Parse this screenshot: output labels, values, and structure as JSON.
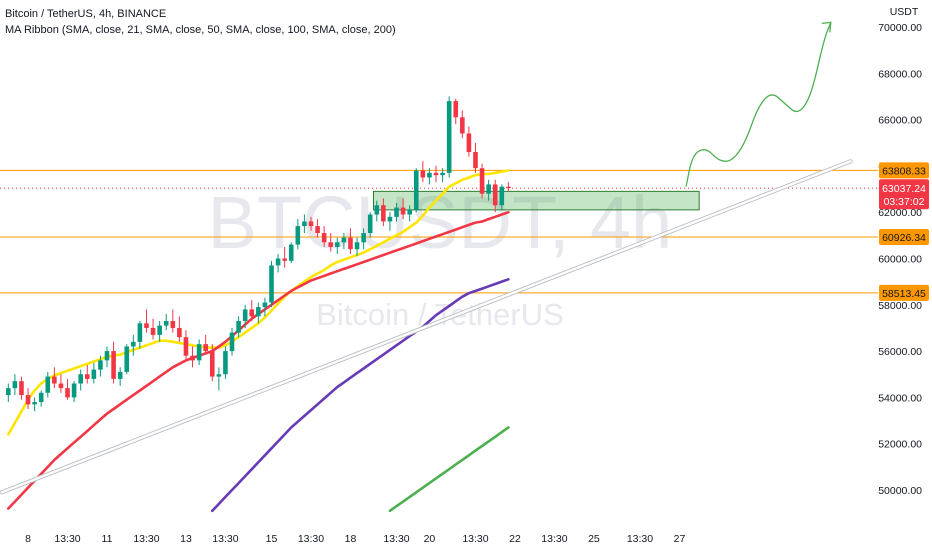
{
  "header": {
    "line1": "Bitcoin / TetherUS, 4h, BINANCE",
    "line2": "MA Ribbon (SMA, close, 21, SMA, close, 50, SMA, close, 100, SMA, close, 200)"
  },
  "watermark": {
    "symbol": "BTCUSDT, 4h",
    "name": "Bitcoin / TetherUS"
  },
  "chart_data": {
    "type": "candlestick",
    "title": "Bitcoin / TetherUS, 4h, BINANCE",
    "y_axis_unit": "USDT",
    "ylim": [
      49000,
      71000
    ],
    "y_ticks": [
      50000,
      52000,
      54000,
      56000,
      58000,
      60000,
      62000,
      64000,
      66000,
      68000,
      70000
    ],
    "y_tick_labels": [
      "50000.00",
      "52000.00",
      "54000.00",
      "56000.00",
      "58000.00",
      "60000.00",
      "62000.00",
      "64000.00",
      "66000.00",
      "68000.00",
      "70000.00"
    ],
    "x_tick_labels": [
      {
        "label": "8",
        "bar": 3
      },
      {
        "label": "13:30",
        "bar": 9
      },
      {
        "label": "11",
        "bar": 15
      },
      {
        "label": "13:30",
        "bar": 21
      },
      {
        "label": "13",
        "bar": 27
      },
      {
        "label": "13:30",
        "bar": 33
      },
      {
        "label": "15",
        "bar": 40
      },
      {
        "label": "13:30",
        "bar": 46
      },
      {
        "label": "18",
        "bar": 52
      },
      {
        "label": "13:30",
        "bar": 59
      },
      {
        "label": "20",
        "bar": 64
      },
      {
        "label": "13:30",
        "bar": 71
      },
      {
        "label": "22",
        "bar": 77
      },
      {
        "label": "13:30",
        "bar": 83
      },
      {
        "label": "25",
        "bar": 89
      },
      {
        "label": "13:30",
        "bar": 96
      },
      {
        "label": "27",
        "bar": 102
      }
    ],
    "candles": [
      [
        54100,
        54600,
        53800,
        54400
      ],
      [
        54400,
        55000,
        54100,
        54700
      ],
      [
        54700,
        54900,
        53900,
        54100
      ],
      [
        54100,
        54400,
        53500,
        53700
      ],
      [
        53700,
        54000,
        53400,
        53800
      ],
      [
        53800,
        54300,
        53600,
        54200
      ],
      [
        54200,
        55100,
        54000,
        54900
      ],
      [
        54900,
        55300,
        54400,
        54600
      ],
      [
        54600,
        55000,
        54200,
        54400
      ],
      [
        54400,
        54800,
        53900,
        54000
      ],
      [
        54000,
        54700,
        53800,
        54600
      ],
      [
        54600,
        55200,
        54300,
        55000
      ],
      [
        55000,
        55400,
        54600,
        54800
      ],
      [
        54800,
        55500,
        54600,
        55200
      ],
      [
        55200,
        55800,
        54900,
        55600
      ],
      [
        55600,
        56200,
        55300,
        56000
      ],
      [
        56000,
        56400,
        54600,
        54800
      ],
      [
        54800,
        55300,
        54500,
        55100
      ],
      [
        55100,
        56300,
        55000,
        56200
      ],
      [
        56200,
        56700,
        55800,
        56400
      ],
      [
        56400,
        57300,
        56100,
        57200
      ],
      [
        57200,
        57800,
        56800,
        57000
      ],
      [
        57000,
        57400,
        56500,
        56700
      ],
      [
        56700,
        57300,
        56400,
        57100
      ],
      [
        57100,
        57600,
        56900,
        57300
      ],
      [
        57300,
        57800,
        56800,
        57000
      ],
      [
        57000,
        57500,
        56400,
        56600
      ],
      [
        56600,
        56900,
        55600,
        55800
      ],
      [
        55800,
        56200,
        55300,
        55600
      ],
      [
        55600,
        56500,
        55400,
        56300
      ],
      [
        56300,
        56700,
        55900,
        56000
      ],
      [
        56000,
        56300,
        54700,
        54900
      ],
      [
        54900,
        55300,
        54300,
        55000
      ],
      [
        55000,
        56200,
        54800,
        56000
      ],
      [
        56000,
        57000,
        55800,
        56800
      ],
      [
        56800,
        57500,
        56600,
        57300
      ],
      [
        57300,
        58000,
        57000,
        57800
      ],
      [
        57800,
        58200,
        57300,
        57500
      ],
      [
        57500,
        58100,
        57200,
        57900
      ],
      [
        57900,
        58300,
        57500,
        58100
      ],
      [
        58100,
        59900,
        57900,
        59700
      ],
      [
        59700,
        60200,
        59400,
        60000
      ],
      [
        60000,
        60500,
        59600,
        59900
      ],
      [
        59900,
        60700,
        59800,
        60600
      ],
      [
        60600,
        61700,
        60400,
        61400
      ],
      [
        61400,
        61900,
        61100,
        61600
      ],
      [
        61600,
        61800,
        61200,
        61400
      ],
      [
        61400,
        61700,
        60900,
        61100
      ],
      [
        61100,
        61400,
        60500,
        60700
      ],
      [
        60700,
        61100,
        60300,
        60500
      ],
      [
        60500,
        60900,
        60200,
        60700
      ],
      [
        60700,
        61100,
        60400,
        60900
      ],
      [
        60900,
        61300,
        60200,
        60400
      ],
      [
        60400,
        60900,
        60100,
        60700
      ],
      [
        60700,
        61300,
        60400,
        61100
      ],
      [
        61100,
        62000,
        60900,
        61900
      ],
      [
        61900,
        62500,
        61600,
        62300
      ],
      [
        62300,
        62600,
        61400,
        61600
      ],
      [
        61600,
        62000,
        61200,
        61800
      ],
      [
        61800,
        62400,
        61600,
        62200
      ],
      [
        62200,
        62600,
        61700,
        61900
      ],
      [
        61900,
        62300,
        61600,
        62100
      ],
      [
        62100,
        63900,
        62000,
        63800
      ],
      [
        63800,
        64200,
        63300,
        63500
      ],
      [
        63500,
        63900,
        63200,
        63700
      ],
      [
        63700,
        64000,
        63300,
        63600
      ],
      [
        63600,
        63900,
        63300,
        63700
      ],
      [
        63700,
        67000,
        63500,
        66800
      ],
      [
        66800,
        66900,
        65800,
        66100
      ],
      [
        66100,
        66400,
        65200,
        65400
      ],
      [
        65400,
        65700,
        64400,
        64600
      ],
      [
        64600,
        65000,
        63700,
        63900
      ],
      [
        63900,
        64100,
        62600,
        62800
      ],
      [
        62800,
        63400,
        62500,
        63200
      ],
      [
        63200,
        63400,
        62000,
        62300
      ],
      [
        62300,
        63200,
        62100,
        63100
      ],
      [
        63100,
        63300,
        62900,
        63037
      ]
    ],
    "series": [
      {
        "name": "SMA 21",
        "color": "#FFE500",
        "start_bar": 0,
        "values": [
          52400,
          52900,
          53400,
          53900,
          54300,
          54600,
          54800,
          54950,
          55050,
          55150,
          55250,
          55350,
          55450,
          55550,
          55650,
          55750,
          55800,
          55850,
          55950,
          56050,
          56150,
          56250,
          56350,
          56450,
          56450,
          56400,
          56350,
          56300,
          56250,
          56200,
          56150,
          56150,
          56150,
          56250,
          56400,
          56600,
          56800,
          57000,
          57200,
          57450,
          57750,
          58050,
          58350,
          58600,
          58800,
          59000,
          59200,
          59350,
          59500,
          59700,
          59850,
          59950,
          60050,
          60150,
          60250,
          60400,
          60550,
          60700,
          60850,
          61000,
          61150,
          61350,
          61550,
          61850,
          62200,
          62500,
          62800,
          63100,
          63250,
          63400,
          63500,
          63600,
          63650,
          63650,
          63700,
          63750,
          63800
        ]
      },
      {
        "name": "SMA 50",
        "color": "#F23645",
        "start_bar": 0,
        "values": [
          49200,
          49500,
          49800,
          50100,
          50400,
          50700,
          51000,
          51300,
          51550,
          51800,
          52050,
          52300,
          52550,
          52800,
          53050,
          53300,
          53500,
          53700,
          53900,
          54100,
          54300,
          54500,
          54700,
          54900,
          55100,
          55300,
          55450,
          55600,
          55700,
          55800,
          55900,
          56000,
          56200,
          56400,
          56650,
          56900,
          57150,
          57400,
          57600,
          57800,
          58000,
          58200,
          58400,
          58600,
          58750,
          58900,
          59050,
          59150,
          59250,
          59350,
          59450,
          59550,
          59650,
          59750,
          59850,
          59950,
          60050,
          60150,
          60250,
          60350,
          60450,
          60550,
          60650,
          60750,
          60850,
          60950,
          61050,
          61150,
          61250,
          61350,
          61450,
          61550,
          61600,
          61700,
          61800,
          61900,
          62000
        ]
      },
      {
        "name": "SMA 100",
        "color": "#673AB7",
        "start_bar": 31,
        "values": [
          49100,
          49400,
          49700,
          50000,
          50300,
          50600,
          50900,
          51200,
          51500,
          51800,
          52100,
          52400,
          52700,
          52950,
          53200,
          53450,
          53700,
          53950,
          54200,
          54450,
          54650,
          54850,
          55050,
          55250,
          55450,
          55650,
          55850,
          56050,
          56250,
          56450,
          56650,
          56850,
          57050,
          57300,
          57550,
          57750,
          57950,
          58150,
          58350,
          58500,
          58600,
          58700,
          58800,
          58900,
          59000,
          59100
        ]
      },
      {
        "name": "SMA 200",
        "color": "#4CAF50",
        "start_bar": 58,
        "values": [
          49100,
          49300,
          49500,
          49700,
          49900,
          50100,
          50300,
          50500,
          50700,
          50900,
          51100,
          51300,
          51500,
          51700,
          51900,
          52100,
          52300,
          52500,
          52700
        ]
      }
    ],
    "trendline": {
      "color": "#ffffff",
      "points": [
        [
          -1,
          49900
        ],
        [
          128,
          64200
        ]
      ]
    },
    "horizontal_levels": [
      {
        "value": 63808.33,
        "label": "63808.33",
        "color": "#FF9800"
      },
      {
        "value": 60926.34,
        "label": "60926.34",
        "color": "#FF9800"
      },
      {
        "value": 58513.45,
        "label": "58513.45",
        "color": "#FF9800"
      }
    ],
    "zone": {
      "from_bar": 55.5,
      "to_bar": 105,
      "low": 62100,
      "high": 62900,
      "color": "#4CAF50"
    },
    "projection": {
      "color": "#4CAF50",
      "points": [
        [
          103,
          63100
        ],
        [
          104,
          64500
        ],
        [
          106,
          64800
        ],
        [
          108,
          64200
        ],
        [
          110,
          64200
        ],
        [
          112,
          65000
        ],
        [
          114,
          66600
        ],
        [
          116,
          67200
        ],
        [
          118,
          66700
        ],
        [
          120,
          66200
        ],
        [
          122,
          67000
        ],
        [
          124,
          69500
        ],
        [
          125,
          70200
        ]
      ],
      "arrow_head": {
        "bar": 125,
        "value": 70200
      }
    },
    "current_price": {
      "value": 63037.24,
      "label": "63037.24",
      "countdown": "03:37:02",
      "color": "#F23645"
    }
  }
}
